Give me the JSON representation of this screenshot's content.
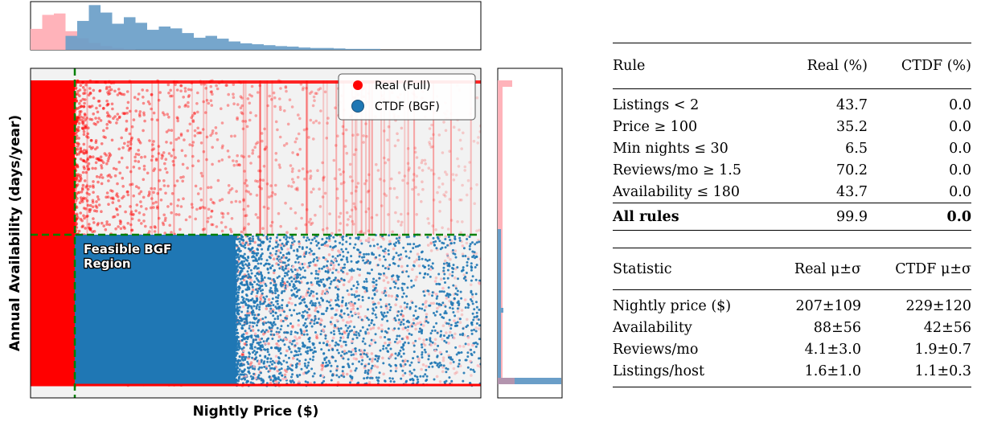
{
  "chart_data": {
    "type": "scatter",
    "title": "",
    "xlabel": "Nightly Price ($)",
    "ylabel": "Annual Availability (days/year)",
    "grid": false,
    "axis_ticks": false,
    "legend": {
      "placement": "top-right",
      "entries": [
        "Real (Full)",
        "CTDF (BGF)"
      ]
    },
    "series": [
      {
        "name": "Real (Full)",
        "color": "#ff0000",
        "region": "full price range, availability 0 to 365"
      },
      {
        "name": "CTDF (BGF)",
        "color": "#1f77b4",
        "region": "price at or above threshold, availability at or below 180"
      }
    ],
    "thresholds": {
      "price_min_line": 100,
      "availability_max_line": 180,
      "line_color": "#008000"
    },
    "annotation": "Feasible BGF\nRegion",
    "marginal_histograms": {
      "top": {
        "axis": "price",
        "series": [
          {
            "name": "Real (Full)",
            "color": "#ffb3ba",
            "values": [
              0.45,
              0.75,
              0.78,
              0.4,
              0.25,
              0.15,
              0.08,
              0.04,
              0.02
            ]
          },
          {
            "name": "CTDF (BGF)",
            "color": "#6a9ec8",
            "values": [
              0,
              0,
              0,
              0.3,
              0.62,
              0.96,
              0.8,
              0.56,
              0.7,
              0.58,
              0.43,
              0.5,
              0.46,
              0.36,
              0.26,
              0.3,
              0.24,
              0.18,
              0.14,
              0.12,
              0.1,
              0.08,
              0.07,
              0.05,
              0.04,
              0.04,
              0.03,
              0.02,
              0.02,
              0.02
            ]
          }
        ]
      },
      "right": {
        "axis": "availability",
        "series": [
          {
            "name": "Real (Full)",
            "color": "#ffb3ba"
          },
          {
            "name": "CTDF (BGF)",
            "color": "#6a9ec8"
          }
        ]
      }
    }
  },
  "rules_table": {
    "headers": [
      "Rule",
      "Real (%)",
      "CTDF (%)"
    ],
    "rows": [
      {
        "rule": "Listings < 2",
        "real": "43.7",
        "ctdf": "0.0"
      },
      {
        "rule": "Price ≥ 100",
        "real": "35.2",
        "ctdf": "0.0"
      },
      {
        "rule": "Min nights ≤ 30",
        "real": "6.5",
        "ctdf": "0.0"
      },
      {
        "rule": "Reviews/mo ≥ 1.5",
        "real": "70.2",
        "ctdf": "0.0"
      },
      {
        "rule": "Availability ≤ 180",
        "real": "43.7",
        "ctdf": "0.0"
      }
    ],
    "total": {
      "rule": "All rules",
      "real": "99.9",
      "ctdf": "0.0"
    }
  },
  "stats_table": {
    "headers": [
      "Statistic",
      "Real μ±σ",
      "CTDF μ±σ"
    ],
    "rows": [
      {
        "statistic": "Nightly price ($)",
        "real": "207±109",
        "ctdf": "229±120"
      },
      {
        "statistic": "Availability",
        "real": "88±56",
        "ctdf": "42±56"
      },
      {
        "statistic": "Reviews/mo",
        "real": "4.1±3.0",
        "ctdf": "1.9±0.7"
      },
      {
        "statistic": "Listings/host",
        "real": "1.6±1.0",
        "ctdf": "1.1±0.3"
      }
    ]
  }
}
